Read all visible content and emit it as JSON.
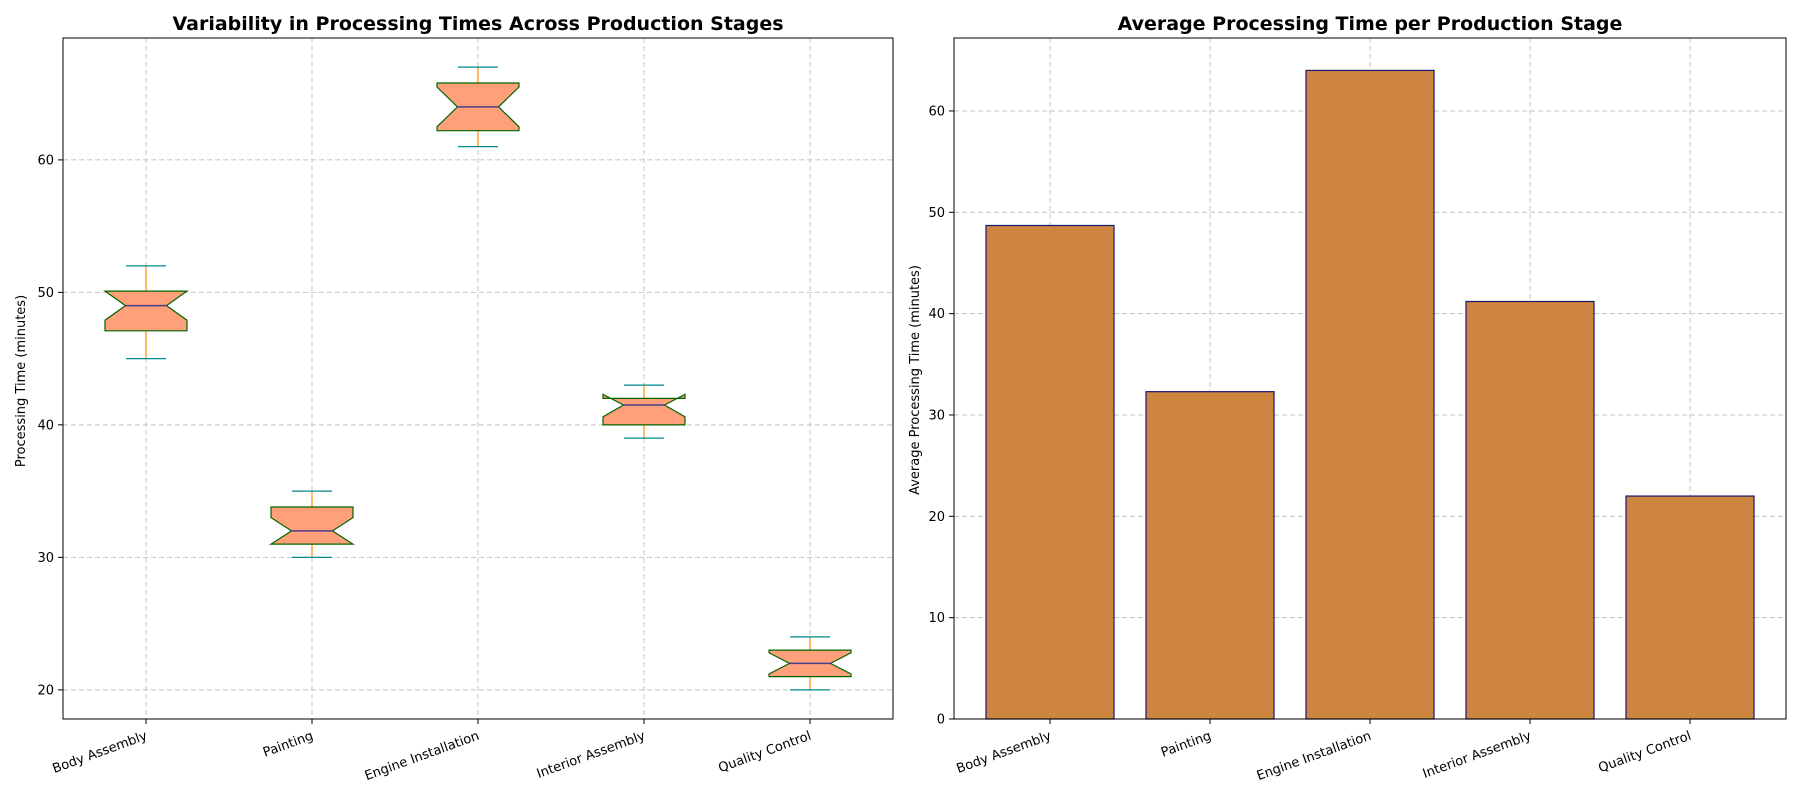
{
  "colors": {
    "box_fill": "#ffa07a",
    "box_edge": "#006400",
    "median": "#483d8b",
    "whisker": "#ff8c00",
    "cap": "#008b8b",
    "bar_fill": "#cd853f",
    "bar_edge": "#191970"
  },
  "chart_data": [
    {
      "type": "box",
      "title": "Variability in Processing Times Across Production Stages",
      "xlabel": "",
      "ylabel": "Processing Time (minutes)",
      "ylim": [
        17.8,
        69.2
      ],
      "yticks": [
        20,
        30,
        40,
        50,
        60
      ],
      "grid": true,
      "categories": [
        "Body Assembly",
        "Painting",
        "Engine Installation",
        "Interior Assembly",
        "Quality Control"
      ],
      "boxes": [
        {
          "min": 45,
          "q1": 47.1,
          "median": 49,
          "q3": 50.1,
          "max": 52,
          "notch_low": 47.9,
          "notch_high": 50.1
        },
        {
          "min": 30,
          "q1": 31.0,
          "median": 32,
          "q3": 33.8,
          "max": 35,
          "notch_low": 31.0,
          "notch_high": 33.0
        },
        {
          "min": 61,
          "q1": 62.2,
          "median": 64,
          "q3": 65.8,
          "max": 67,
          "notch_low": 62.5,
          "notch_high": 65.5
        },
        {
          "min": 39,
          "q1": 40.0,
          "median": 41.5,
          "q3": 42.0,
          "max": 43,
          "notch_low": 40.6,
          "notch_high": 42.3
        },
        {
          "min": 20,
          "q1": 21.0,
          "median": 22,
          "q3": 23.0,
          "max": 24,
          "notch_low": 21.2,
          "notch_high": 22.8
        }
      ]
    },
    {
      "type": "bar",
      "title": "Average Processing Time per Production Stage",
      "xlabel": "",
      "ylabel": "Average Processing Time (minutes)",
      "ylim": [
        0,
        67.2
      ],
      "yticks": [
        0,
        10,
        20,
        30,
        40,
        50,
        60
      ],
      "grid": true,
      "categories": [
        "Body Assembly",
        "Painting",
        "Engine Installation",
        "Interior Assembly",
        "Quality Control"
      ],
      "values": [
        48.7,
        32.3,
        64.0,
        41.2,
        22.0
      ]
    }
  ]
}
